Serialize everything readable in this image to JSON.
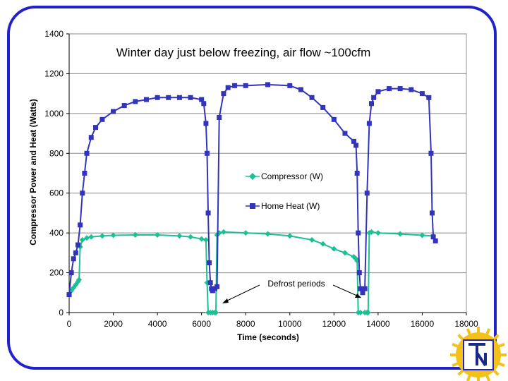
{
  "chart_data": {
    "type": "line",
    "title": "Winter day just below freezing, air flow ~100cfm",
    "xlabel": "Time (seconds)",
    "ylabel": "Compressor Power and Heat (Watts)",
    "xlim": [
      0,
      18000
    ],
    "ylim": [
      0,
      1400
    ],
    "xticks": [
      0,
      2000,
      4000,
      6000,
      8000,
      10000,
      12000,
      14000,
      16000,
      18000
    ],
    "yticks": [
      0,
      200,
      400,
      600,
      800,
      1000,
      1200,
      1400
    ],
    "legend_position": "center-right",
    "annotation": "Defrost periods",
    "series": [
      {
        "name": "Compressor (W)",
        "color": "#1dbf96",
        "marker": "diamond",
        "x": [
          0,
          100,
          200,
          300,
          400,
          450,
          500,
          600,
          800,
          1000,
          1500,
          2000,
          3000,
          4000,
          5000,
          5500,
          6000,
          6200,
          6250,
          6300,
          6400,
          6500,
          6600,
          6650,
          6700,
          6800,
          7000,
          8000,
          9000,
          10000,
          11000,
          11500,
          12000,
          12500,
          12900,
          13000,
          13050,
          13100,
          13200,
          13400,
          13500,
          13550,
          13600,
          13700,
          14000,
          15000,
          16000,
          16500
        ],
        "y": [
          90,
          110,
          125,
          140,
          155,
          165,
          330,
          365,
          375,
          380,
          385,
          388,
          390,
          390,
          385,
          380,
          370,
          365,
          150,
          0,
          0,
          0,
          0,
          0,
          390,
          400,
          405,
          400,
          395,
          385,
          365,
          345,
          320,
          300,
          280,
          270,
          260,
          0,
          0,
          0,
          0,
          0,
          400,
          405,
          400,
          395,
          388,
          385
        ]
      },
      {
        "name": "Home Heat (W)",
        "color": "#3333bb",
        "marker": "square",
        "x": [
          0,
          100,
          200,
          300,
          400,
          500,
          600,
          700,
          800,
          1000,
          1200,
          1500,
          2000,
          2500,
          3000,
          3500,
          4000,
          4500,
          5000,
          5500,
          6000,
          6100,
          6200,
          6250,
          6300,
          6350,
          6400,
          6450,
          6500,
          6600,
          6700,
          6800,
          7000,
          7200,
          7500,
          8000,
          9000,
          10000,
          10500,
          11000,
          11500,
          12000,
          12500,
          12900,
          13000,
          13050,
          13100,
          13150,
          13200,
          13300,
          13400,
          13500,
          13600,
          13700,
          13800,
          14000,
          14500,
          15000,
          15500,
          16000,
          16300,
          16400,
          16450,
          16500,
          16600
        ],
        "y": [
          90,
          200,
          270,
          300,
          340,
          440,
          600,
          700,
          800,
          880,
          930,
          970,
          1010,
          1040,
          1060,
          1070,
          1080,
          1080,
          1080,
          1080,
          1070,
          1050,
          950,
          800,
          500,
          250,
          150,
          120,
          110,
          120,
          130,
          980,
          1100,
          1130,
          1140,
          1140,
          1145,
          1140,
          1120,
          1080,
          1030,
          970,
          900,
          860,
          840,
          700,
          400,
          200,
          120,
          100,
          120,
          600,
          950,
          1050,
          1080,
          1110,
          1125,
          1125,
          1120,
          1100,
          1080,
          800,
          500,
          380,
          360
        ]
      }
    ]
  }
}
